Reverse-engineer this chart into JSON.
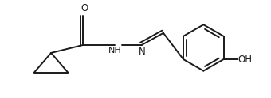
{
  "bg_color": "#ffffff",
  "line_color": "#1a1a1a",
  "line_width": 1.4,
  "font_size": 8.5,
  "figsize": [
    3.4,
    1.24
  ],
  "dpi": 100,
  "xlim": [
    -0.15,
    5.6
  ],
  "ylim": [
    1.6,
    4.0
  ]
}
